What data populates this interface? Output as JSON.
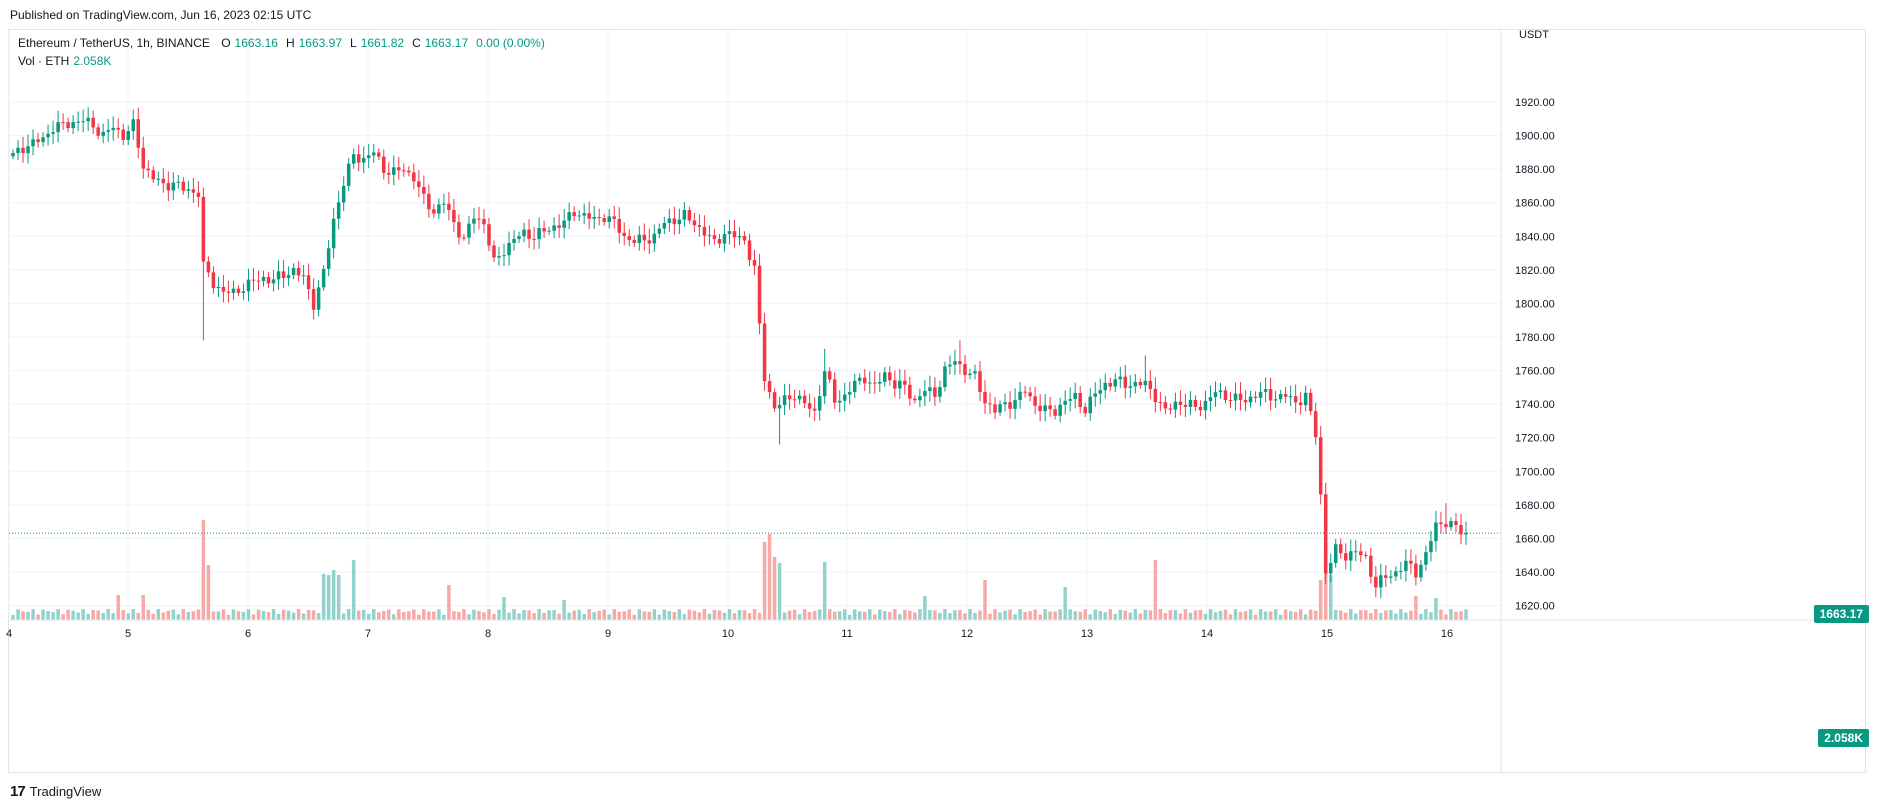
{
  "header": {
    "published": "Published on TradingView.com, Jun 16, 2023 02:15 UTC"
  },
  "legend": {
    "symbol": "Ethereum / TetherUS, 1h, BINANCE",
    "o_key": "O",
    "o": "1663.16",
    "h_key": "H",
    "h": "1663.97",
    "l_key": "L",
    "l": "1661.82",
    "c_key": "C",
    "c": "1663.17",
    "change": "0.00 (0.00%)",
    "vol_label": "Vol · ETH",
    "vol_value": "2.058K"
  },
  "price_axis": {
    "currency": "USDT",
    "last_price_tag": "1663.17",
    "volume_tag": "2.058K"
  },
  "footer": {
    "brand": "TradingView"
  },
  "colors": {
    "up": "#089981",
    "down": "#f23645",
    "vol_up": "#92d2cc",
    "vol_down": "#f7a9a7",
    "grid": "#f0f3fa",
    "text": "#131722"
  },
  "chart_data": {
    "type": "candlestick",
    "y_ticks": [
      1620,
      1640,
      1660,
      1680,
      1700,
      1720,
      1740,
      1760,
      1780,
      1800,
      1820,
      1840,
      1860,
      1880,
      1900,
      1920
    ],
    "y_tick_labels": [
      "1620.00",
      "1640.00",
      "1660.00",
      "1680.00",
      "1700.00",
      "1720.00",
      "1740.00",
      "1760.00",
      "1780.00",
      "1800.00",
      "1820.00",
      "1840.00",
      "1860.00",
      "1880.00",
      "1900.00",
      "1920.00"
    ],
    "x_tick_labels": [
      "4",
      "5",
      "6",
      "7",
      "8",
      "9",
      "10",
      "11",
      "12",
      "13",
      "14",
      "15",
      "16"
    ],
    "last_price": 1663.17,
    "anchors": [
      [
        0,
        1888
      ],
      [
        2,
        1893
      ],
      [
        6,
        1898
      ],
      [
        8,
        1905
      ],
      [
        10,
        1906
      ],
      [
        12,
        1908
      ],
      [
        14,
        1909
      ],
      [
        16,
        1906
      ],
      [
        18,
        1900
      ],
      [
        20,
        1905
      ],
      [
        22,
        1900
      ],
      [
        24,
        1906
      ],
      [
        26,
        1882
      ],
      [
        28,
        1875
      ],
      [
        30,
        1870
      ],
      [
        32,
        1872
      ],
      [
        34,
        1868
      ],
      [
        37,
        1866
      ],
      [
        38,
        1822
      ],
      [
        40,
        1812
      ],
      [
        42,
        1807
      ],
      [
        44,
        1806
      ],
      [
        46,
        1810
      ],
      [
        48,
        1813
      ],
      [
        50,
        1815
      ],
      [
        52,
        1814
      ],
      [
        54,
        1817
      ],
      [
        56,
        1820
      ],
      [
        58,
        1815
      ],
      [
        60,
        1800
      ],
      [
        62,
        1818
      ],
      [
        64,
        1850
      ],
      [
        66,
        1872
      ],
      [
        68,
        1888
      ],
      [
        70,
        1886
      ],
      [
        72,
        1890
      ],
      [
        74,
        1880
      ],
      [
        76,
        1878
      ],
      [
        78,
        1880
      ],
      [
        80,
        1875
      ],
      [
        82,
        1862
      ],
      [
        84,
        1855
      ],
      [
        86,
        1860
      ],
      [
        88,
        1848
      ],
      [
        90,
        1838
      ],
      [
        92,
        1852
      ],
      [
        94,
        1848
      ],
      [
        96,
        1824
      ],
      [
        98,
        1832
      ],
      [
        100,
        1838
      ],
      [
        102,
        1842
      ],
      [
        104,
        1840
      ],
      [
        106,
        1843
      ],
      [
        108,
        1846
      ],
      [
        110,
        1848
      ],
      [
        112,
        1855
      ],
      [
        114,
        1852
      ],
      [
        116,
        1850
      ],
      [
        118,
        1852
      ],
      [
        120,
        1848
      ],
      [
        122,
        1840
      ],
      [
        124,
        1837
      ],
      [
        126,
        1838
      ],
      [
        128,
        1840
      ],
      [
        130,
        1848
      ],
      [
        132,
        1850
      ],
      [
        134,
        1852
      ],
      [
        136,
        1848
      ],
      [
        138,
        1842
      ],
      [
        140,
        1836
      ],
      [
        142,
        1842
      ],
      [
        144,
        1840
      ],
      [
        146,
        1838
      ],
      [
        148,
        1820
      ],
      [
        149,
        1786
      ],
      [
        150,
        1756
      ],
      [
        152,
        1738
      ],
      [
        154,
        1742
      ],
      [
        156,
        1746
      ],
      [
        158,
        1740
      ],
      [
        160,
        1735
      ],
      [
        162,
        1760
      ],
      [
        164,
        1742
      ],
      [
        166,
        1745
      ],
      [
        168,
        1752
      ],
      [
        170,
        1756
      ],
      [
        172,
        1750
      ],
      [
        174,
        1758
      ],
      [
        176,
        1752
      ],
      [
        178,
        1750
      ],
      [
        180,
        1742
      ],
      [
        182,
        1748
      ],
      [
        184,
        1746
      ],
      [
        186,
        1760
      ],
      [
        188,
        1766
      ],
      [
        190,
        1760
      ],
      [
        192,
        1756
      ],
      [
        194,
        1742
      ],
      [
        196,
        1736
      ],
      [
        198,
        1740
      ],
      [
        200,
        1742
      ],
      [
        202,
        1748
      ],
      [
        204,
        1740
      ],
      [
        206,
        1736
      ],
      [
        208,
        1736
      ],
      [
        210,
        1742
      ],
      [
        212,
        1744
      ],
      [
        214,
        1737
      ],
      [
        216,
        1746
      ],
      [
        218,
        1752
      ],
      [
        220,
        1754
      ],
      [
        222,
        1752
      ],
      [
        224,
        1752
      ],
      [
        226,
        1752
      ],
      [
        228,
        1745
      ],
      [
        230,
        1735
      ],
      [
        232,
        1741
      ],
      [
        234,
        1740
      ],
      [
        236,
        1738
      ],
      [
        238,
        1741
      ],
      [
        240,
        1747
      ],
      [
        242,
        1745
      ],
      [
        244,
        1743
      ],
      [
        246,
        1742
      ],
      [
        248,
        1746
      ],
      [
        250,
        1746
      ],
      [
        252,
        1744
      ],
      [
        254,
        1745
      ],
      [
        256,
        1741
      ],
      [
        258,
        1745
      ],
      [
        260,
        1722
      ],
      [
        261,
        1686
      ],
      [
        262,
        1640
      ],
      [
        264,
        1653
      ],
      [
        266,
        1650
      ],
      [
        268,
        1652
      ],
      [
        270,
        1648
      ],
      [
        272,
        1632
      ],
      [
        274,
        1637
      ],
      [
        276,
        1640
      ],
      [
        278,
        1645
      ],
      [
        280,
        1640
      ],
      [
        282,
        1650
      ],
      [
        284,
        1668
      ],
      [
        286,
        1670
      ],
      [
        288,
        1666
      ],
      [
        290,
        1663
      ]
    ],
    "volume_spikes": [
      [
        38,
        1.0
      ],
      [
        39,
        0.55
      ],
      [
        150,
        0.78
      ],
      [
        151,
        0.86
      ],
      [
        152,
        0.63
      ],
      [
        153,
        0.57
      ],
      [
        162,
        0.58
      ],
      [
        62,
        0.46
      ],
      [
        63,
        0.45
      ],
      [
        64,
        0.5
      ],
      [
        65,
        0.45
      ],
      [
        68,
        0.6
      ],
      [
        261,
        0.4
      ],
      [
        262,
        0.7
      ],
      [
        263,
        0.45
      ],
      [
        228,
        0.6
      ],
      [
        194,
        0.4
      ],
      [
        87,
        0.35
      ],
      [
        21,
        0.25
      ],
      [
        26,
        0.25
      ],
      [
        98,
        0.23
      ],
      [
        110,
        0.2
      ],
      [
        182,
        0.24
      ],
      [
        210,
        0.33
      ],
      [
        280,
        0.24
      ],
      [
        284,
        0.22
      ]
    ]
  }
}
